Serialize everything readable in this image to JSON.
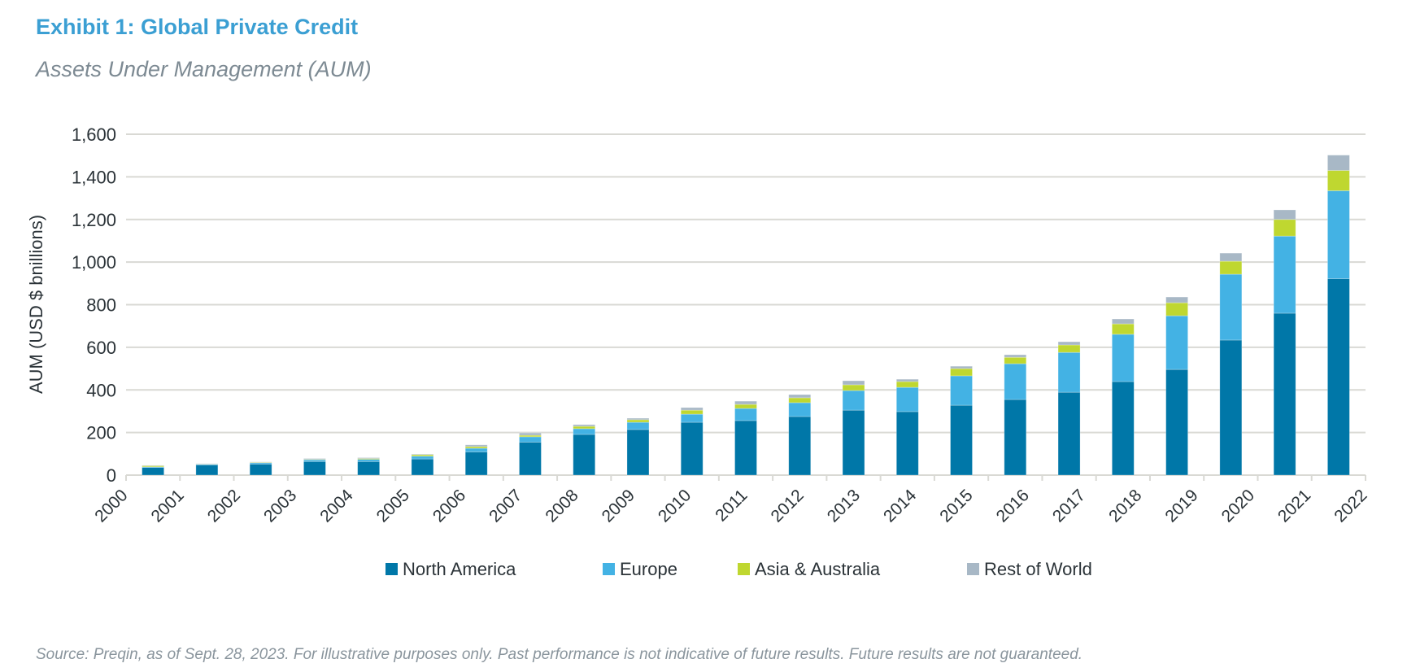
{
  "chart_data": {
    "type": "bar",
    "stacked": true,
    "title": "Exhibit 1: Global Private Credit",
    "subtitle": "Assets Under Management (AUM)",
    "xlabel": "",
    "ylabel": "AUM (USD $ bnillions)",
    "ylim": [
      0,
      1600
    ],
    "yticks": [
      0,
      200,
      400,
      600,
      800,
      1000,
      1200,
      1400,
      1600
    ],
    "ytick_labels": [
      "0",
      "200",
      "400",
      "600",
      "800",
      "1,000",
      "1,200",
      "1,400",
      "1,600"
    ],
    "grid": true,
    "legend_position": "bottom",
    "categories": [
      "2000",
      "2001",
      "2002",
      "2003",
      "2004",
      "2005",
      "2006",
      "2007",
      "2008",
      "2009",
      "2010",
      "2011",
      "2012",
      "2013",
      "2014",
      "2015",
      "2016",
      "2017",
      "2018",
      "2019",
      "2020",
      "2021",
      "2022"
    ],
    "series": [
      {
        "name": "North America",
        "color": "#0077a8",
        "values": [
          36,
          48,
          52,
          64,
          64,
          76,
          109,
          155,
          191,
          214,
          248,
          256,
          275,
          305,
          298,
          328,
          355,
          389,
          439,
          496,
          634,
          760,
          922
        ]
      },
      {
        "name": "Europe",
        "color": "#43b2e4",
        "values": [
          3,
          3,
          6,
          8,
          10,
          13,
          17,
          25,
          27,
          34,
          38,
          57,
          65,
          92,
          114,
          138,
          168,
          187,
          222,
          252,
          309,
          362,
          413
        ]
      },
      {
        "name": "Asia & Australia",
        "color": "#bfd730",
        "values": [
          5,
          1,
          2,
          2,
          4,
          7,
          8,
          7,
          11,
          12,
          19,
          19,
          23,
          27,
          27,
          34,
          30,
          35,
          49,
          61,
          61,
          78,
          95
        ]
      },
      {
        "name": "Rest of World",
        "color": "#a8b8c6",
        "values": [
          2,
          2,
          2,
          4,
          4,
          3,
          8,
          11,
          8,
          7,
          12,
          15,
          15,
          19,
          11,
          11,
          12,
          15,
          23,
          27,
          38,
          45,
          72
        ]
      }
    ]
  },
  "footer": "Source: Preqin, as of Sept. 28, 2023. For illustrative purposes only. Past performance is not indicative of future results. Future results are not guaranteed.",
  "colors": {
    "title": "#3b9fd3",
    "grid": "#d9d9d4"
  }
}
